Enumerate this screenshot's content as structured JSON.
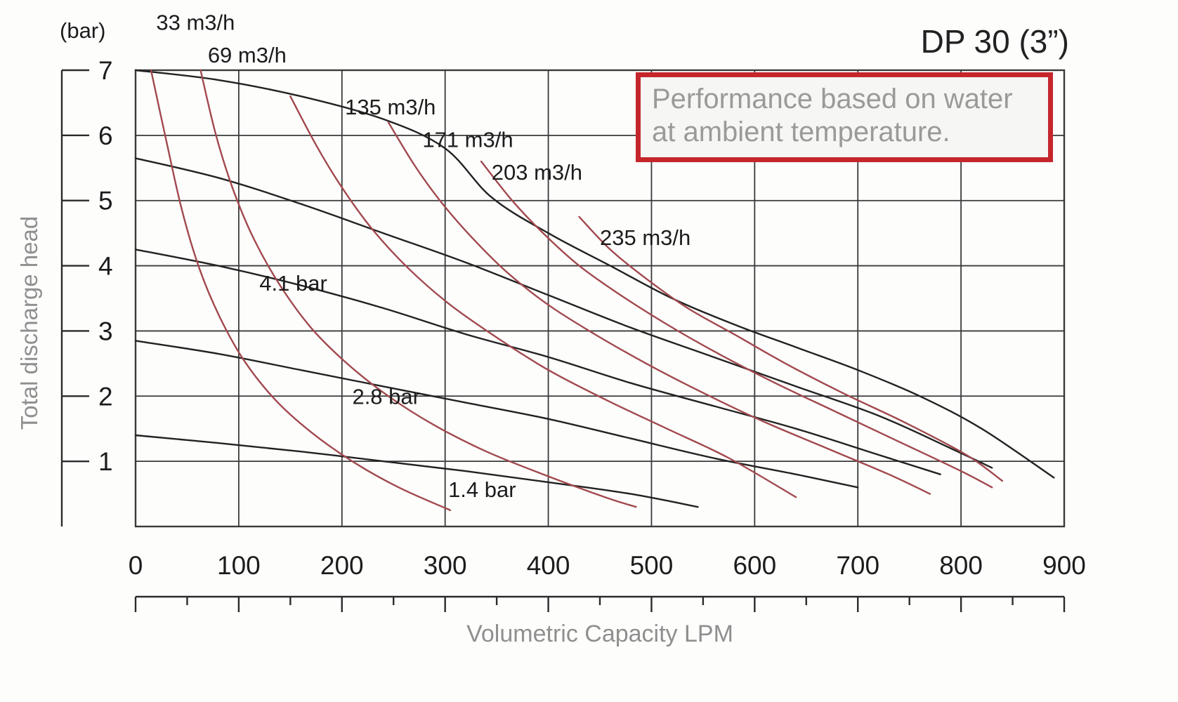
{
  "chart": {
    "colors": {
      "grid": "#3a3a3a",
      "axis": "#2b2b2b",
      "text": "#1c1c1c",
      "pump_curve": "#222222",
      "air_curve": "#a1494e",
      "note_border": "#c5262c",
      "note_text": "#9a9a9a",
      "axis_title_text": "#8f8f8f"
    }
  },
  "chart_data": {
    "type": "line",
    "title": "DP 30 (3”)",
    "annotation": "Performance based on water at ambient temperature.",
    "xlabel": "Volumetric Capacity LPM",
    "ylabel": "Total discharge head",
    "y_unit_label": "(bar)",
    "xlim": [
      0,
      900
    ],
    "ylim": [
      0,
      7
    ],
    "x_ticks": [
      0,
      100,
      200,
      300,
      400,
      500,
      600,
      700,
      800,
      900
    ],
    "x_minor_step": 50,
    "y_ticks": [
      1,
      2,
      3,
      4,
      5,
      6,
      7
    ],
    "grid": true,
    "legend": "none",
    "series": [
      {
        "id": "pump-curve-a",
        "role": "pump",
        "label": "",
        "points": [
          [
            0,
            7.0
          ],
          [
            80,
            6.85
          ],
          [
            160,
            6.6
          ],
          [
            240,
            6.25
          ],
          [
            300,
            5.8
          ],
          [
            345,
            5.05
          ],
          [
            400,
            4.5
          ],
          [
            460,
            4.0
          ],
          [
            520,
            3.5
          ],
          [
            580,
            3.1
          ],
          [
            640,
            2.75
          ],
          [
            700,
            2.4
          ],
          [
            760,
            2.0
          ],
          [
            820,
            1.5
          ],
          [
            890,
            0.75
          ]
        ]
      },
      {
        "id": "pump-curve-b",
        "role": "pump",
        "label": "",
        "points": [
          [
            0,
            5.65
          ],
          [
            80,
            5.35
          ],
          [
            160,
            4.95
          ],
          [
            240,
            4.5
          ],
          [
            320,
            4.05
          ],
          [
            400,
            3.55
          ],
          [
            480,
            3.05
          ],
          [
            560,
            2.6
          ],
          [
            640,
            2.15
          ],
          [
            720,
            1.7
          ],
          [
            790,
            1.2
          ],
          [
            830,
            0.9
          ]
        ]
      },
      {
        "id": "pump-curve-4-1-bar",
        "role": "pump",
        "label": "4.1 bar",
        "label_pos": [
          120,
          3.62
        ],
        "points": [
          [
            0,
            4.25
          ],
          [
            80,
            4.0
          ],
          [
            160,
            3.7
          ],
          [
            240,
            3.35
          ],
          [
            320,
            2.95
          ],
          [
            400,
            2.6
          ],
          [
            480,
            2.2
          ],
          [
            560,
            1.85
          ],
          [
            640,
            1.5
          ],
          [
            720,
            1.1
          ],
          [
            780,
            0.8
          ]
        ]
      },
      {
        "id": "pump-curve-2-8-bar",
        "role": "pump",
        "label": "2.8 bar",
        "label_pos": [
          210,
          1.88
        ],
        "points": [
          [
            0,
            2.85
          ],
          [
            80,
            2.65
          ],
          [
            160,
            2.4
          ],
          [
            240,
            2.15
          ],
          [
            320,
            1.9
          ],
          [
            400,
            1.65
          ],
          [
            480,
            1.35
          ],
          [
            560,
            1.05
          ],
          [
            640,
            0.8
          ],
          [
            700,
            0.6
          ]
        ]
      },
      {
        "id": "pump-curve-1-4-bar",
        "role": "pump",
        "label": "1.4 bar",
        "label_pos": [
          303,
          0.45
        ],
        "points": [
          [
            0,
            1.4
          ],
          [
            80,
            1.28
          ],
          [
            160,
            1.15
          ],
          [
            240,
            1.0
          ],
          [
            320,
            0.85
          ],
          [
            400,
            0.68
          ],
          [
            480,
            0.5
          ],
          [
            545,
            0.3
          ]
        ]
      },
      {
        "id": "air-33-m3h",
        "role": "air",
        "label": "33 m3/h",
        "label_pos": [
          20,
          7.62
        ],
        "points": [
          [
            15,
            7.0
          ],
          [
            30,
            5.9
          ],
          [
            45,
            4.85
          ],
          [
            62,
            3.95
          ],
          [
            82,
            3.2
          ],
          [
            105,
            2.55
          ],
          [
            135,
            1.95
          ],
          [
            170,
            1.45
          ],
          [
            210,
            1.0
          ],
          [
            255,
            0.6
          ],
          [
            305,
            0.25
          ]
        ]
      },
      {
        "id": "air-69-m3h",
        "role": "air",
        "label": "69 m3/h",
        "label_pos": [
          70,
          7.12
        ],
        "points": [
          [
            63,
            7.0
          ],
          [
            78,
            6.0
          ],
          [
            95,
            5.15
          ],
          [
            115,
            4.4
          ],
          [
            140,
            3.7
          ],
          [
            170,
            3.05
          ],
          [
            205,
            2.5
          ],
          [
            245,
            2.0
          ],
          [
            290,
            1.55
          ],
          [
            340,
            1.15
          ],
          [
            395,
            0.8
          ],
          [
            455,
            0.45
          ],
          [
            485,
            0.3
          ]
        ]
      },
      {
        "id": "air-135-m3h",
        "role": "air",
        "label": "135 m3/h",
        "label_pos": [
          203,
          6.32
        ],
        "points": [
          [
            150,
            6.6
          ],
          [
            175,
            5.85
          ],
          [
            200,
            5.2
          ],
          [
            230,
            4.55
          ],
          [
            265,
            3.95
          ],
          [
            305,
            3.4
          ],
          [
            350,
            2.9
          ],
          [
            400,
            2.4
          ],
          [
            455,
            1.95
          ],
          [
            515,
            1.5
          ],
          [
            575,
            1.05
          ],
          [
            640,
            0.45
          ]
        ]
      },
      {
        "id": "air-171-m3h",
        "role": "air",
        "label": "171 m3/h",
        "label_pos": [
          278,
          5.82
        ],
        "points": [
          [
            245,
            6.2
          ],
          [
            270,
            5.55
          ],
          [
            295,
            5.0
          ],
          [
            325,
            4.45
          ],
          [
            360,
            3.9
          ],
          [
            400,
            3.4
          ],
          [
            445,
            2.95
          ],
          [
            495,
            2.5
          ],
          [
            550,
            2.05
          ],
          [
            610,
            1.6
          ],
          [
            670,
            1.2
          ],
          [
            730,
            0.8
          ],
          [
            770,
            0.5
          ]
        ]
      },
      {
        "id": "air-203-m3h",
        "role": "air",
        "label": "203 m3/h",
        "label_pos": [
          345,
          5.32
        ],
        "points": [
          [
            335,
            5.6
          ],
          [
            365,
            5.0
          ],
          [
            395,
            4.5
          ],
          [
            430,
            4.0
          ],
          [
            470,
            3.55
          ],
          [
            515,
            3.1
          ],
          [
            565,
            2.65
          ],
          [
            620,
            2.2
          ],
          [
            680,
            1.75
          ],
          [
            740,
            1.3
          ],
          [
            800,
            0.85
          ],
          [
            830,
            0.6
          ]
        ]
      },
      {
        "id": "air-235-m3h",
        "role": "air",
        "label": "235 m3/h",
        "label_pos": [
          450,
          4.32
        ],
        "points": [
          [
            430,
            4.75
          ],
          [
            460,
            4.25
          ],
          [
            495,
            3.8
          ],
          [
            535,
            3.35
          ],
          [
            580,
            2.95
          ],
          [
            630,
            2.5
          ],
          [
            685,
            2.05
          ],
          [
            745,
            1.6
          ],
          [
            805,
            1.1
          ],
          [
            840,
            0.7
          ]
        ]
      }
    ]
  }
}
